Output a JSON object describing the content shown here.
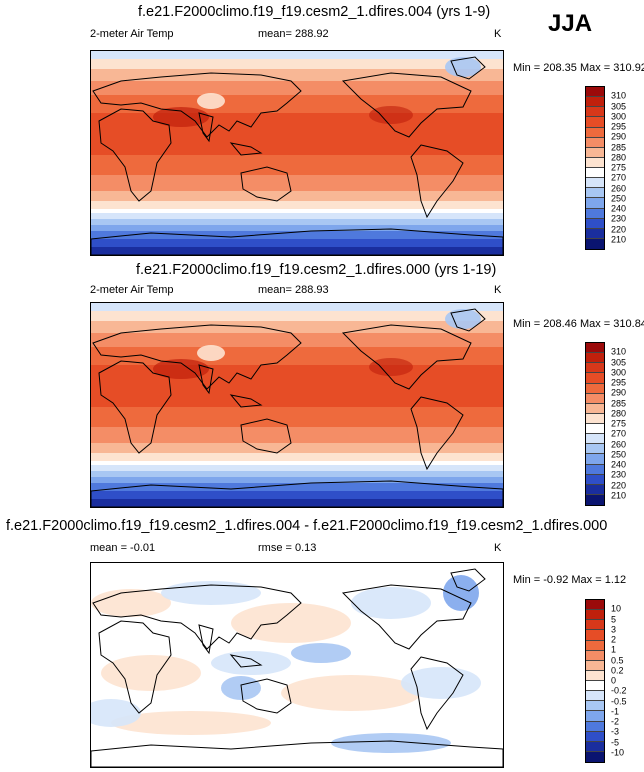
{
  "season": "JJA",
  "panels": [
    {
      "title": "f.e21.F2000climo.f19_f19.cesm2_1.dfires.004 (yrs 1-9)",
      "variable": "2-meter Air Temp",
      "mean_text": "mean= 288.92",
      "units": "K",
      "minmax_text": "Min = 208.35 Max = 310.92",
      "colorbar": {
        "labels": [
          "310",
          "305",
          "300",
          "295",
          "290",
          "285",
          "280",
          "275",
          "270",
          "260",
          "250",
          "240",
          "230",
          "220",
          "210"
        ],
        "colors": [
          "#9b0a0a",
          "#c0200c",
          "#d7381a",
          "#e64d26",
          "#ee6a3d",
          "#f48d66",
          "#f8b795",
          "#fde3d0",
          "#ffffff",
          "#d6e5fa",
          "#a8c7f3",
          "#7ea6ec",
          "#4f79dd",
          "#2f4fc8",
          "#1a2e9e",
          "#0a1470"
        ]
      },
      "chart_data": {
        "type": "heatmap",
        "title": "f.e21.F2000climo.f19_f19.cesm2_1.dfires.004 (yrs 1-9)",
        "variable": "2-meter Air Temp",
        "units": "K",
        "season": "JJA",
        "mean": 288.92,
        "min": 208.35,
        "max": 310.92,
        "contour_levels": [
          210,
          220,
          230,
          240,
          250,
          260,
          270,
          275,
          280,
          285,
          290,
          295,
          300,
          305,
          310
        ]
      }
    },
    {
      "title": "f.e21.F2000climo.f19_f19.cesm2_1.dfires.000 (yrs 1-19)",
      "variable": "2-meter Air Temp",
      "mean_text": "mean= 288.93",
      "units": "K",
      "minmax_text": "Min = 208.46 Max = 310.84",
      "colorbar": {
        "labels": [
          "310",
          "305",
          "300",
          "295",
          "290",
          "285",
          "280",
          "275",
          "270",
          "260",
          "250",
          "240",
          "230",
          "220",
          "210"
        ],
        "colors": [
          "#9b0a0a",
          "#c0200c",
          "#d7381a",
          "#e64d26",
          "#ee6a3d",
          "#f48d66",
          "#f8b795",
          "#fde3d0",
          "#ffffff",
          "#d6e5fa",
          "#a8c7f3",
          "#7ea6ec",
          "#4f79dd",
          "#2f4fc8",
          "#1a2e9e",
          "#0a1470"
        ]
      },
      "chart_data": {
        "type": "heatmap",
        "title": "f.e21.F2000climo.f19_f19.cesm2_1.dfires.000 (yrs 1-19)",
        "variable": "2-meter Air Temp",
        "units": "K",
        "season": "JJA",
        "mean": 288.93,
        "min": 208.46,
        "max": 310.84,
        "contour_levels": [
          210,
          220,
          230,
          240,
          250,
          260,
          270,
          275,
          280,
          285,
          290,
          295,
          300,
          305,
          310
        ]
      }
    },
    {
      "title": "f.e21.F2000climo.f19_f19.cesm2_1.dfires.004 - f.e21.F2000climo.f19_f19.cesm2_1.dfires.000",
      "variable": "mean =  -0.01",
      "mean_text": "rmse =   0.13",
      "units": "K",
      "minmax_text": "Min =  -0.92 Max =   1.12",
      "colorbar": {
        "labels": [
          "10",
          "5",
          "3",
          "2",
          "1",
          "0.5",
          "0.2",
          "0",
          "-0.2",
          "-0.5",
          "-1",
          "-2",
          "-3",
          "-5",
          "-10"
        ],
        "colors": [
          "#9b0a0a",
          "#c0200c",
          "#d7381a",
          "#e64d26",
          "#ee6a3d",
          "#f48d66",
          "#f8b795",
          "#fde3d0",
          "#ffffff",
          "#d6e5fa",
          "#a8c7f3",
          "#7ea6ec",
          "#4f79dd",
          "#2f4fc8",
          "#1a2e9e",
          "#0a1470"
        ]
      },
      "chart_data": {
        "type": "heatmap",
        "title": "f.e21.F2000climo.f19_f19.cesm2_1.dfires.004 - f.e21.F2000climo.f19_f19.cesm2_1.dfires.000",
        "units": "K",
        "season": "JJA",
        "mean": -0.01,
        "rmse": 0.13,
        "min": -0.92,
        "max": 1.12,
        "contour_levels": [
          -10,
          -5,
          -3,
          -2,
          -1,
          -0.5,
          -0.2,
          0,
          0.2,
          0.5,
          1,
          2,
          3,
          5,
          10
        ]
      }
    }
  ]
}
